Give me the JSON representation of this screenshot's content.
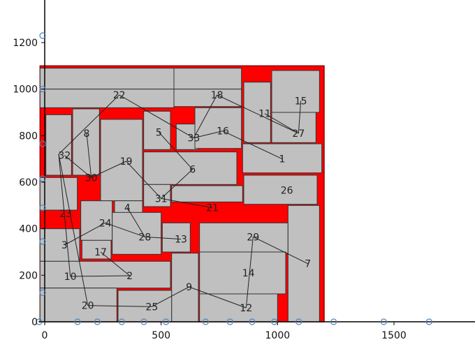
{
  "chart_data": {
    "type": "rectangle-packing",
    "title": "",
    "xlabel": "",
    "ylabel": "",
    "xlim": [
      -20,
      1850
    ],
    "ylim": [
      0,
      1380
    ],
    "x_ticks": [
      0,
      500,
      1000,
      1500
    ],
    "y_ticks": [
      0,
      200,
      400,
      600,
      800,
      1000,
      1200
    ],
    "x_tick_labels": [
      "0",
      "500",
      "1000",
      "1500"
    ],
    "y_tick_labels": [
      "0",
      "200",
      "400",
      "600",
      "800",
      "1000",
      "1200"
    ],
    "grid": false,
    "legend": "none",
    "colors": {
      "container": "#ff0000",
      "rect_fill": "#c0c0c0",
      "rect_stroke": "#333333",
      "link": "#222222",
      "marker": "#4f83b8",
      "axis": "#000000"
    },
    "container": {
      "x0": -20,
      "y0": 0,
      "x1": 1200,
      "y1": 1100
    },
    "rectangles": [
      {
        "x0": -20,
        "y0": 1000,
        "x1": 555,
        "y1": 1090
      },
      {
        "x0": 555,
        "y0": 1000,
        "x1": 845,
        "y1": 1090
      },
      {
        "x0": 855,
        "y0": 1030,
        "x1": 970,
        "y1": 1000
      },
      {
        "x0": 975,
        "y0": 900,
        "x1": 1180,
        "y1": 1080
      },
      {
        "x0": -20,
        "y0": 920,
        "x1": 555,
        "y1": 1000
      },
      {
        "x0": 555,
        "y0": 925,
        "x1": 845,
        "y1": 1000
      },
      {
        "x0": 855,
        "y0": 770,
        "x1": 970,
        "y1": 1030
      },
      {
        "x0": 975,
        "y0": 770,
        "x1": 1165,
        "y1": 900
      },
      {
        "x0": 5,
        "y0": 630,
        "x1": 115,
        "y1": 890
      },
      {
        "x0": 120,
        "y0": 630,
        "x1": 235,
        "y1": 915
      },
      {
        "x0": 240,
        "y0": 520,
        "x1": 420,
        "y1": 870
      },
      {
        "x0": 425,
        "y0": 740,
        "x1": 540,
        "y1": 905
      },
      {
        "x0": 565,
        "y0": 740,
        "x1": 660,
        "y1": 850
      },
      {
        "x0": 645,
        "y0": 745,
        "x1": 845,
        "y1": 920
      },
      {
        "x0": 425,
        "y0": 590,
        "x1": 825,
        "y1": 730
      },
      {
        "x0": 850,
        "y0": 640,
        "x1": 1190,
        "y1": 765
      },
      {
        "x0": 855,
        "y0": 505,
        "x1": 1170,
        "y1": 630
      },
      {
        "x0": -20,
        "y0": 480,
        "x1": 140,
        "y1": 620
      },
      {
        "x0": 425,
        "y0": 495,
        "x1": 540,
        "y1": 590
      },
      {
        "x0": 545,
        "y0": 515,
        "x1": 850,
        "y1": 585
      },
      {
        "x0": 155,
        "y0": 350,
        "x1": 290,
        "y1": 520
      },
      {
        "x0": 300,
        "y0": 460,
        "x1": 420,
        "y1": 520
      },
      {
        "x0": 290,
        "y0": 290,
        "x1": 500,
        "y1": 470
      },
      {
        "x0": 505,
        "y0": 300,
        "x1": 625,
        "y1": 425
      },
      {
        "x0": 665,
        "y0": 295,
        "x1": 1045,
        "y1": 425
      },
      {
        "x0": 1045,
        "y0": 0,
        "x1": 1180,
        "y1": 500
      },
      {
        "x0": -20,
        "y0": 260,
        "x1": 150,
        "y1": 400
      },
      {
        "x0": 160,
        "y0": 270,
        "x1": 285,
        "y1": 350
      },
      {
        "x0": -20,
        "y0": 145,
        "x1": 540,
        "y1": 260
      },
      {
        "x0": 545,
        "y0": 0,
        "x1": 660,
        "y1": 295
      },
      {
        "x0": 665,
        "y0": 120,
        "x1": 1035,
        "y1": 300
      },
      {
        "x0": -20,
        "y0": 0,
        "x1": 310,
        "y1": 145
      },
      {
        "x0": 315,
        "y0": 0,
        "x1": 545,
        "y1": 135
      },
      {
        "x0": 665,
        "y0": 0,
        "x1": 1000,
        "y1": 120
      }
    ],
    "labels": [
      {
        "text": "1",
        "x": 1020,
        "y": 700
      },
      {
        "text": "2",
        "x": 365,
        "y": 198
      },
      {
        "text": "3",
        "x": 85,
        "y": 330
      },
      {
        "text": "4",
        "x": 355,
        "y": 490
      },
      {
        "text": "5",
        "x": 490,
        "y": 815
      },
      {
        "text": "6",
        "x": 635,
        "y": 655
      },
      {
        "text": "7",
        "x": 1130,
        "y": 250
      },
      {
        "text": "8",
        "x": 180,
        "y": 810
      },
      {
        "text": "9",
        "x": 620,
        "y": 150
      },
      {
        "text": "10",
        "x": 110,
        "y": 195
      },
      {
        "text": "11",
        "x": 945,
        "y": 895
      },
      {
        "text": "12",
        "x": 865,
        "y": 60
      },
      {
        "text": "13",
        "x": 585,
        "y": 355
      },
      {
        "text": "14",
        "x": 875,
        "y": 210
      },
      {
        "text": "15",
        "x": 1100,
        "y": 950
      },
      {
        "text": "16",
        "x": 765,
        "y": 820
      },
      {
        "text": "17",
        "x": 240,
        "y": 300
      },
      {
        "text": "18",
        "x": 740,
        "y": 975
      },
      {
        "text": "19",
        "x": 350,
        "y": 690
      },
      {
        "text": "20",
        "x": 185,
        "y": 70
      },
      {
        "text": "21",
        "x": 720,
        "y": 490
      },
      {
        "text": "22",
        "x": 320,
        "y": 975
      },
      {
        "text": "23",
        "x": 90,
        "y": 465
      },
      {
        "text": "24",
        "x": 260,
        "y": 425
      },
      {
        "text": "25",
        "x": 460,
        "y": 65
      },
      {
        "text": "26",
        "x": 1040,
        "y": 565
      },
      {
        "text": "27",
        "x": 1090,
        "y": 810
      },
      {
        "text": "28",
        "x": 430,
        "y": 365
      },
      {
        "text": "29",
        "x": 895,
        "y": 365
      },
      {
        "text": "30",
        "x": 200,
        "y": 620
      },
      {
        "text": "31",
        "x": 500,
        "y": 530
      },
      {
        "text": "32",
        "x": 85,
        "y": 715
      },
      {
        "text": "33",
        "x": 640,
        "y": 790
      }
    ],
    "links": [
      {
        "from": [
          320,
          975
        ],
        "to": [
          60,
          720
        ]
      },
      {
        "from": [
          320,
          975
        ],
        "to": [
          640,
          790
        ]
      },
      {
        "from": [
          740,
          975
        ],
        "to": [
          640,
          790
        ]
      },
      {
        "from": [
          740,
          975
        ],
        "to": [
          1090,
          810
        ]
      },
      {
        "from": [
          1100,
          950
        ],
        "to": [
          1090,
          810
        ]
      },
      {
        "from": [
          765,
          820
        ],
        "to": [
          640,
          790
        ]
      },
      {
        "from": [
          765,
          820
        ],
        "to": [
          1020,
          700
        ]
      },
      {
        "from": [
          490,
          815
        ],
        "to": [
          635,
          655
        ]
      },
      {
        "from": [
          635,
          655
        ],
        "to": [
          500,
          530
        ]
      },
      {
        "from": [
          350,
          690
        ],
        "to": [
          200,
          620
        ]
      },
      {
        "from": [
          350,
          690
        ],
        "to": [
          500,
          530
        ]
      },
      {
        "from": [
          500,
          530
        ],
        "to": [
          720,
          490
        ]
      },
      {
        "from": [
          180,
          810
        ],
        "to": [
          200,
          620
        ]
      },
      {
        "from": [
          85,
          715
        ],
        "to": [
          200,
          620
        ]
      },
      {
        "from": [
          60,
          720
        ],
        "to": [
          110,
          195
        ]
      },
      {
        "from": [
          60,
          720
        ],
        "to": [
          185,
          70
        ]
      },
      {
        "from": [
          85,
          330
        ],
        "to": [
          260,
          425
        ]
      },
      {
        "from": [
          260,
          425
        ],
        "to": [
          430,
          365
        ]
      },
      {
        "from": [
          355,
          490
        ],
        "to": [
          430,
          365
        ]
      },
      {
        "from": [
          430,
          365
        ],
        "to": [
          585,
          355
        ]
      },
      {
        "from": [
          240,
          300
        ],
        "to": [
          365,
          198
        ]
      },
      {
        "from": [
          110,
          195
        ],
        "to": [
          365,
          198
        ]
      },
      {
        "from": [
          185,
          70
        ],
        "to": [
          460,
          65
        ]
      },
      {
        "from": [
          460,
          65
        ],
        "to": [
          620,
          150
        ]
      },
      {
        "from": [
          620,
          150
        ],
        "to": [
          865,
          60
        ]
      },
      {
        "from": [
          865,
          60
        ],
        "to": [
          895,
          365
        ]
      },
      {
        "from": [
          895,
          365
        ],
        "to": [
          1130,
          250
        ]
      },
      {
        "from": [
          945,
          895
        ],
        "to": [
          1090,
          810
        ]
      }
    ],
    "x_axis_markers": [
      0,
      165,
      250,
      355,
      450,
      545,
      715,
      820,
      915,
      1010,
      1115,
      1265,
      1480,
      1675
    ],
    "y_axis_markers": [
      125,
      345,
      490,
      615,
      765,
      1000,
      1230
    ]
  }
}
